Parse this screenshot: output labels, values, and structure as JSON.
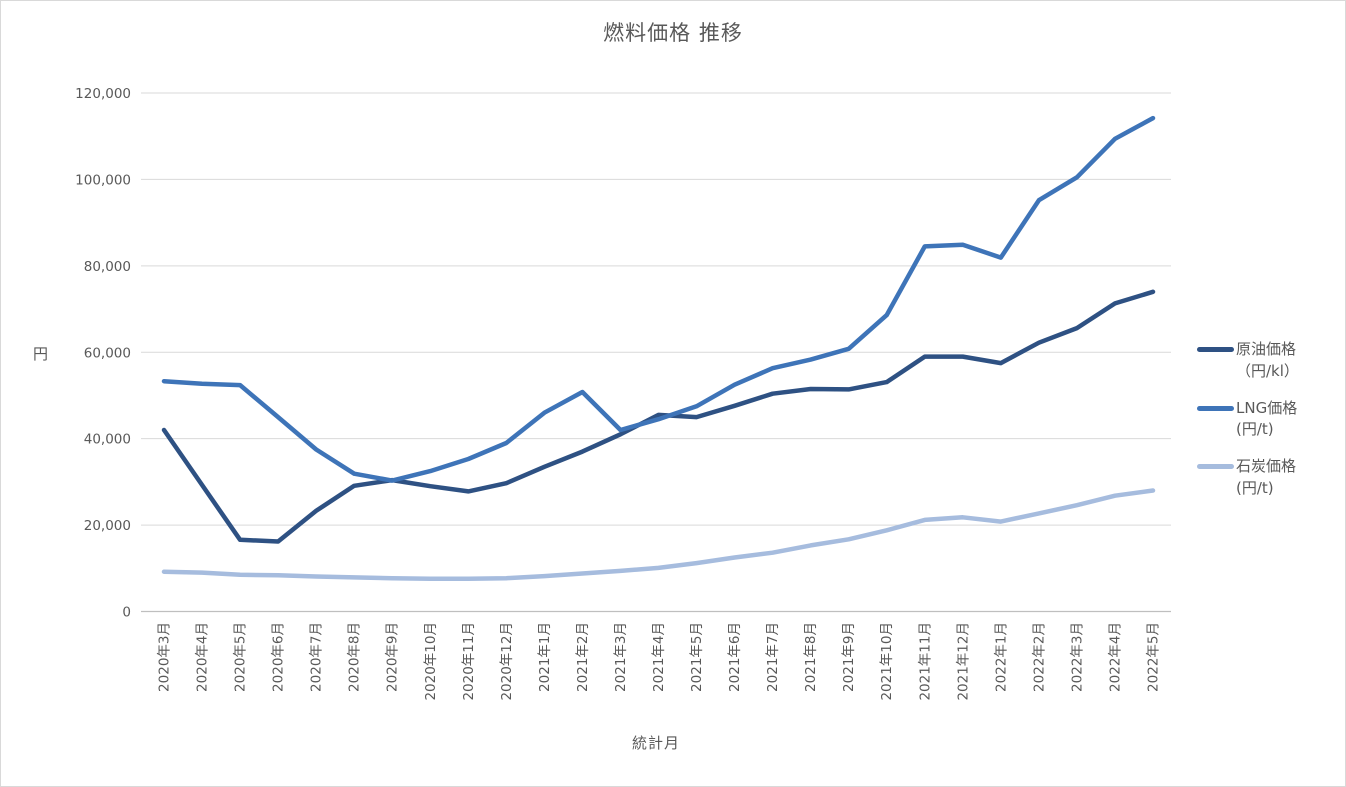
{
  "title": "燃料価格 推移",
  "colors": {
    "text": "#595959",
    "gridline": "#D9D9D9",
    "axis_line": "#BFBFBF",
    "background": "#FFFFFF",
    "series_crude": "#2E5183",
    "series_lng": "#3E74B8",
    "series_coal": "#A6BCDE"
  },
  "chart_data": {
    "type": "line",
    "title": "燃料価格 推移",
    "xlabel": "統計月",
    "ylabel": "円",
    "ylim": [
      0,
      120000
    ],
    "ytick_step": 20000,
    "ytick_labels": [
      "0",
      "20,000",
      "40,000",
      "60,000",
      "80,000",
      "100,000",
      "120,000"
    ],
    "grid": true,
    "legend_position": "right",
    "categories": [
      "2020年3月",
      "2020年4月",
      "2020年5月",
      "2020年6月",
      "2020年7月",
      "2020年8月",
      "2020年9月",
      "2020年10月",
      "2020年11月",
      "2020年12月",
      "2021年1月",
      "2021年2月",
      "2021年3月",
      "2021年4月",
      "2021年5月",
      "2021年6月",
      "2021年7月",
      "2021年8月",
      "2021年9月",
      "2021年10月",
      "2021年11月",
      "2021年12月",
      "2022年1月",
      "2022年2月",
      "2022年3月",
      "2022年4月",
      "2022年5月"
    ],
    "series": [
      {
        "name": "原油価格（円/kl）",
        "name_lines": [
          "原油価格",
          "（円/kl）"
        ],
        "color": "#2E5183",
        "values": [
          42000,
          29300,
          16600,
          16200,
          23300,
          29100,
          30400,
          29000,
          27800,
          29700,
          33500,
          37000,
          41000,
          45500,
          45000,
          47600,
          50400,
          51500,
          51400,
          53100,
          59000,
          59000,
          57500,
          62200,
          65600,
          71300,
          74000
        ]
      },
      {
        "name": "LNG価格(円/t)",
        "name_lines": [
          "LNG価格",
          "(円/t)"
        ],
        "color": "#3E74B8",
        "values": [
          53300,
          52700,
          52400,
          45000,
          37500,
          31900,
          30300,
          32500,
          35300,
          39000,
          46000,
          50800,
          42000,
          44500,
          47500,
          52500,
          56300,
          58300,
          60800,
          68600,
          84500,
          84900,
          81900,
          95200,
          100500,
          109400,
          114200
        ]
      },
      {
        "name": "石炭価格(円/t)",
        "name_lines": [
          "石炭価格",
          "(円/t)"
        ],
        "color": "#A6BCDE",
        "values": [
          9200,
          9000,
          8500,
          8400,
          8100,
          7900,
          7700,
          7600,
          7600,
          7700,
          8200,
          8800,
          9400,
          10100,
          11200,
          12500,
          13600,
          15300,
          16700,
          18800,
          21200,
          21800,
          20800,
          22700,
          24600,
          26800,
          28000
        ]
      }
    ]
  }
}
